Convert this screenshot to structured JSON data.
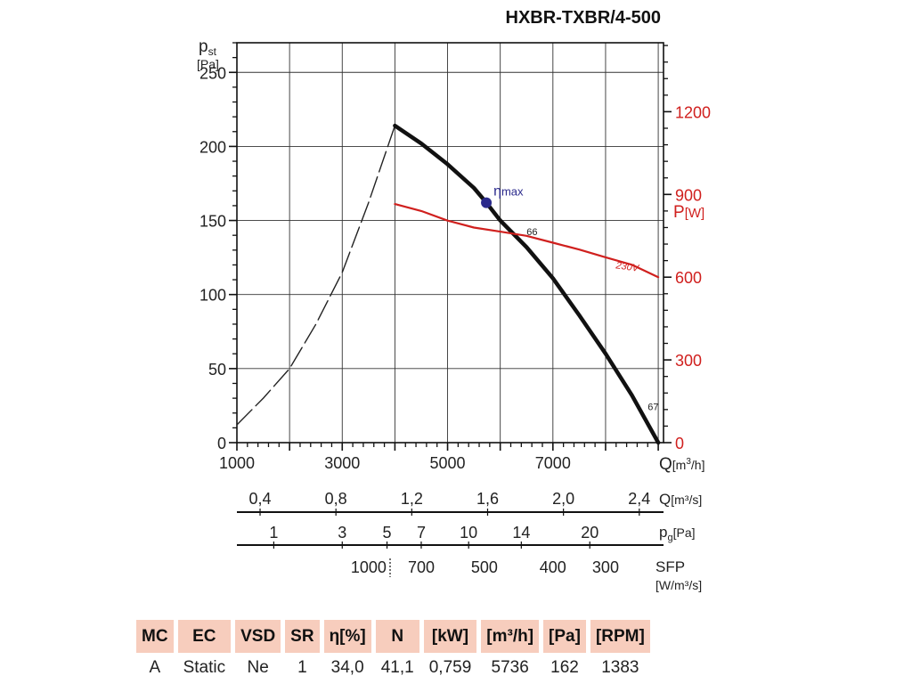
{
  "chart_data": {
    "type": "line",
    "title": "HXBR-TXBR/4-500",
    "y_axis": {
      "label_main": "p",
      "label_sub": "st",
      "unit": "[Pa]",
      "range": [
        0,
        270
      ],
      "ticks": [
        "0",
        "50",
        "100",
        "150",
        "200",
        "250"
      ]
    },
    "y2_axis": {
      "label_main": "P",
      "unit": "[W]",
      "range": [
        0,
        1450
      ],
      "ticks": [
        "0",
        "300",
        "600",
        "900",
        "1200"
      ],
      "color": "#d0201e"
    },
    "x_axis": {
      "label_main": "Q",
      "unit_pre": "[m",
      "unit_sup": "3",
      "unit_post": "/h]",
      "range": [
        1000,
        9100
      ],
      "ticks": [
        "1000",
        "3000",
        "5000",
        "7000"
      ]
    },
    "series": [
      {
        "style": "dashed",
        "color": "#222222",
        "axis": "y",
        "x": [
          1000,
          1500,
          2000,
          2500,
          3000,
          3500,
          4000
        ],
        "y": [
          12,
          30,
          50,
          80,
          115,
          162,
          214
        ]
      },
      {
        "style": "solid-thick",
        "color": "#111111",
        "axis": "y",
        "x": [
          4000,
          4500,
          5000,
          5500,
          5736,
          6000,
          6500,
          7000,
          7500,
          8000,
          8500,
          9000
        ],
        "y": [
          214,
          202,
          188,
          172,
          162,
          150,
          132,
          111,
          86,
          60,
          32,
          0
        ],
        "labels": [
          {
            "text": "66",
            "x": 6500,
            "y": 140
          },
          {
            "text": "67",
            "x": 8800,
            "y": 22
          }
        ]
      },
      {
        "name": "230V",
        "style": "solid",
        "color": "#d0201e",
        "axis": "y2",
        "x": [
          4000,
          4500,
          5000,
          5500,
          6000,
          6500,
          7000,
          7500,
          8000,
          8500,
          9000
        ],
        "y": [
          865,
          840,
          805,
          780,
          765,
          750,
          725,
          700,
          672,
          645,
          600
        ]
      }
    ],
    "marker": {
      "text": "η",
      "sub": "max",
      "x": 5736,
      "y": 162,
      "color": "#2b2a8c"
    },
    "scales": [
      {
        "unit_main": "Q",
        "unit_text": "[m³/s]",
        "ticks": [
          {
            "label": "0,4",
            "x": 1440
          },
          {
            "label": "0,8",
            "x": 2880
          },
          {
            "label": "1,2",
            "x": 4320
          },
          {
            "label": "1,6",
            "x": 5760
          },
          {
            "label": "2,0",
            "x": 7200
          },
          {
            "label": "2,4",
            "x": 8640
          }
        ]
      },
      {
        "unit_main": "p",
        "unit_sub": "g",
        "unit_text": "[Pa]",
        "ticks": [
          {
            "label": "1",
            "x": 1700
          },
          {
            "label": "3",
            "x": 3000
          },
          {
            "label": "5",
            "x": 3850
          },
          {
            "label": "7",
            "x": 4500
          },
          {
            "label": "10",
            "x": 5400
          },
          {
            "label": "14",
            "x": 6400
          },
          {
            "label": "20",
            "x": 7700
          }
        ]
      },
      {
        "unit_main": "SFP",
        "unit_text": "[W/m³/s]",
        "ticks": [
          {
            "label": "1000",
            "x": 3500
          },
          {
            "label": "700",
            "x": 4500
          },
          {
            "label": "500",
            "x": 5700
          },
          {
            "label": "400",
            "x": 7000
          },
          {
            "label": "300",
            "x": 8000
          }
        ]
      }
    ]
  },
  "table": {
    "headers": [
      "MC",
      "EC",
      "VSD",
      "SR",
      "η[%]",
      "N",
      "[kW]",
      "[m³/h]",
      "[Pa]",
      "[RPM]"
    ],
    "values": [
      "A",
      "Static",
      "Ne",
      "1",
      "34,0",
      "41,1",
      "0,759",
      "5736",
      "162",
      "1383"
    ]
  }
}
